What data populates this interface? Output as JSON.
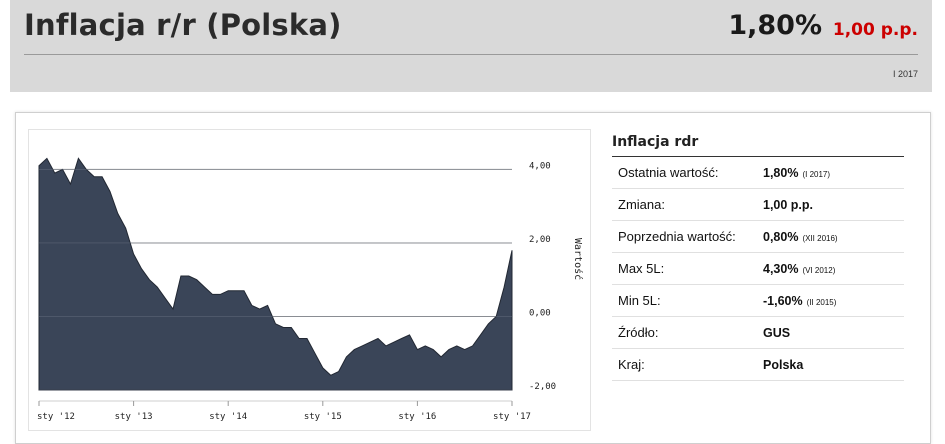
{
  "header": {
    "title": "Inflacja r/r (Polska)",
    "value": "1,80%",
    "change": "1,00 p.p.",
    "period": "I 2017"
  },
  "info": {
    "title": "Inflacja rdr",
    "rows": [
      {
        "label": "Ostatnia wartość:",
        "value": "1,80%",
        "sub": "(I 2017)"
      },
      {
        "label": "Zmiana:",
        "value": "1,00 p.p.",
        "sub": ""
      },
      {
        "label": "Poprzednia wartość:",
        "value": "0,80%",
        "sub": "(XII 2016)"
      },
      {
        "label": "Max 5L:",
        "value": "4,30%",
        "sub": "(VI 2012)"
      },
      {
        "label": "Min 5L:",
        "value": "-1,60%",
        "sub": "(II 2015)"
      },
      {
        "label": "Źródło:",
        "value": "GUS",
        "sub": ""
      },
      {
        "label": "Kraj:",
        "value": "Polska",
        "sub": ""
      }
    ]
  },
  "colors": {
    "area_fill": "#3a4558",
    "change": "#cc0000",
    "header_bg": "#d9d9d9"
  },
  "chart_data": {
    "type": "area",
    "ylabel": "Wartość",
    "ylim": [
      -2,
      4.8
    ],
    "y_ticks": [
      {
        "value": 4,
        "label": "4,00"
      },
      {
        "value": 2,
        "label": "2,00"
      },
      {
        "value": 0,
        "label": "0,00"
      },
      {
        "value": -2,
        "label": "-2,00"
      }
    ],
    "x_ticks": [
      {
        "index": 0,
        "label": "sty '12"
      },
      {
        "index": 12,
        "label": "sty '13"
      },
      {
        "index": 24,
        "label": "sty '14"
      },
      {
        "index": 36,
        "label": "sty '15"
      },
      {
        "index": 48,
        "label": "sty '16"
      },
      {
        "index": 60,
        "label": "sty '17"
      }
    ],
    "grid": true,
    "series": [
      {
        "values": [
          4.1,
          4.3,
          3.9,
          4.0,
          3.6,
          4.3,
          4.0,
          3.8,
          3.8,
          3.4,
          2.8,
          2.4,
          1.7,
          1.3,
          1.0,
          0.8,
          0.5,
          0.2,
          1.1,
          1.1,
          1.0,
          0.8,
          0.6,
          0.6,
          0.7,
          0.7,
          0.7,
          0.3,
          0.2,
          0.3,
          -0.2,
          -0.3,
          -0.3,
          -0.6,
          -0.6,
          -1.0,
          -1.4,
          -1.6,
          -1.5,
          -1.1,
          -0.9,
          -0.8,
          -0.7,
          -0.6,
          -0.8,
          -0.7,
          -0.6,
          -0.5,
          -0.9,
          -0.8,
          -0.9,
          -1.1,
          -0.9,
          -0.8,
          -0.9,
          -0.8,
          -0.5,
          -0.2,
          0.0,
          0.8,
          1.8
        ]
      }
    ]
  }
}
